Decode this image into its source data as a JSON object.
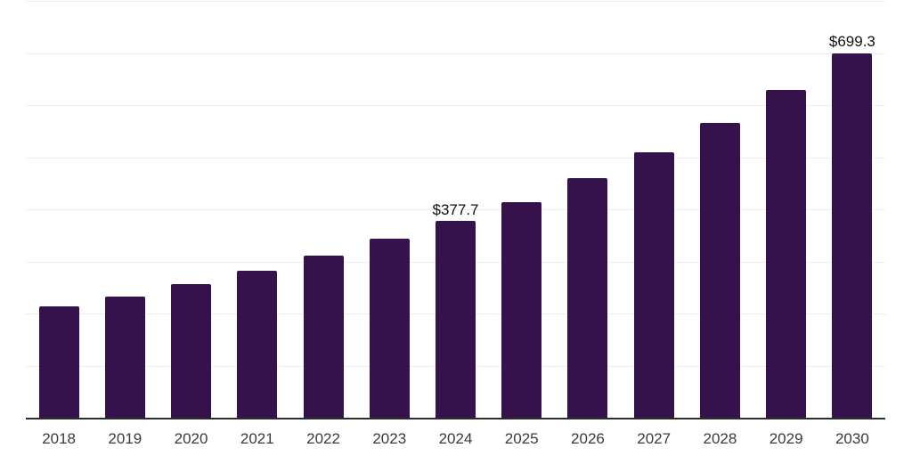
{
  "chart_data": {
    "type": "bar",
    "title": "",
    "xlabel": "",
    "ylabel": "",
    "categories": [
      "2018",
      "2019",
      "2020",
      "2021",
      "2022",
      "2023",
      "2024",
      "2025",
      "2026",
      "2027",
      "2028",
      "2029",
      "2030"
    ],
    "values": [
      213.7,
      232.5,
      256.4,
      282.1,
      311.0,
      342.9,
      377.7,
      414.5,
      460.5,
      509.4,
      565.8,
      628.5,
      699.3
    ],
    "data_labels": {
      "2024": "$377.7",
      "2030": "$699.3"
    },
    "ylim": [
      0,
      800
    ],
    "grid_interval": 100,
    "grid": true,
    "legend": false,
    "y_axis_tick_labels_visible": false,
    "colors": {
      "bar": "#35124B",
      "gridline": "#EDEDED",
      "axis_line": "#2D2D2D",
      "x_label_text": "#3A3A3A",
      "data_label_text": "#111111",
      "background": "#FFFFFF"
    }
  }
}
